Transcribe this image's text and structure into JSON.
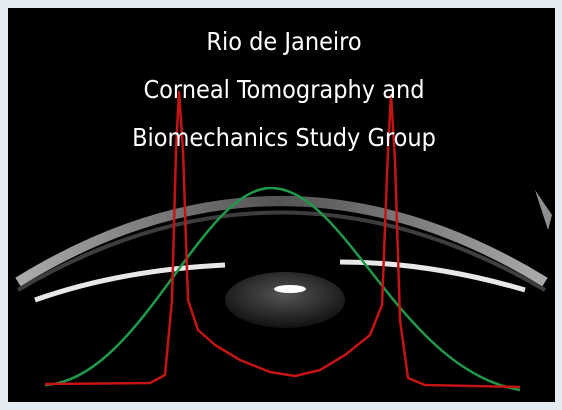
{
  "logo": {
    "lines": [
      "Rio de Janeiro",
      "Corneal Tomography and",
      "Biomechanics Study Group"
    ]
  }
}
